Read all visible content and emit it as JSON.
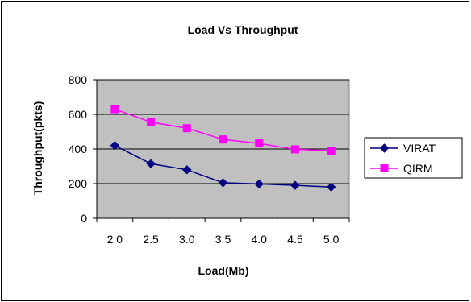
{
  "chart_data": {
    "type": "line",
    "title": "Load Vs Throughput",
    "xlabel": "Load(Mb)",
    "ylabel": "Throughput(pkts)",
    "categories": [
      "2.0",
      "2.5",
      "3.0",
      "3.5",
      "4.0",
      "4.5",
      "5.0"
    ],
    "ylim": [
      0,
      800
    ],
    "yticks": [
      0,
      200,
      400,
      600,
      800
    ],
    "grid": true,
    "legend_position": "right",
    "series": [
      {
        "name": "VIRAT",
        "values": [
          420,
          315,
          280,
          205,
          198,
          190,
          180
        ],
        "color": "#000080",
        "marker": "diamond"
      },
      {
        "name": "QIRM",
        "values": [
          630,
          555,
          520,
          455,
          432,
          398,
          390
        ],
        "color": "#ff00ff",
        "marker": "square"
      }
    ],
    "plot_background": "#c0c0c0"
  }
}
